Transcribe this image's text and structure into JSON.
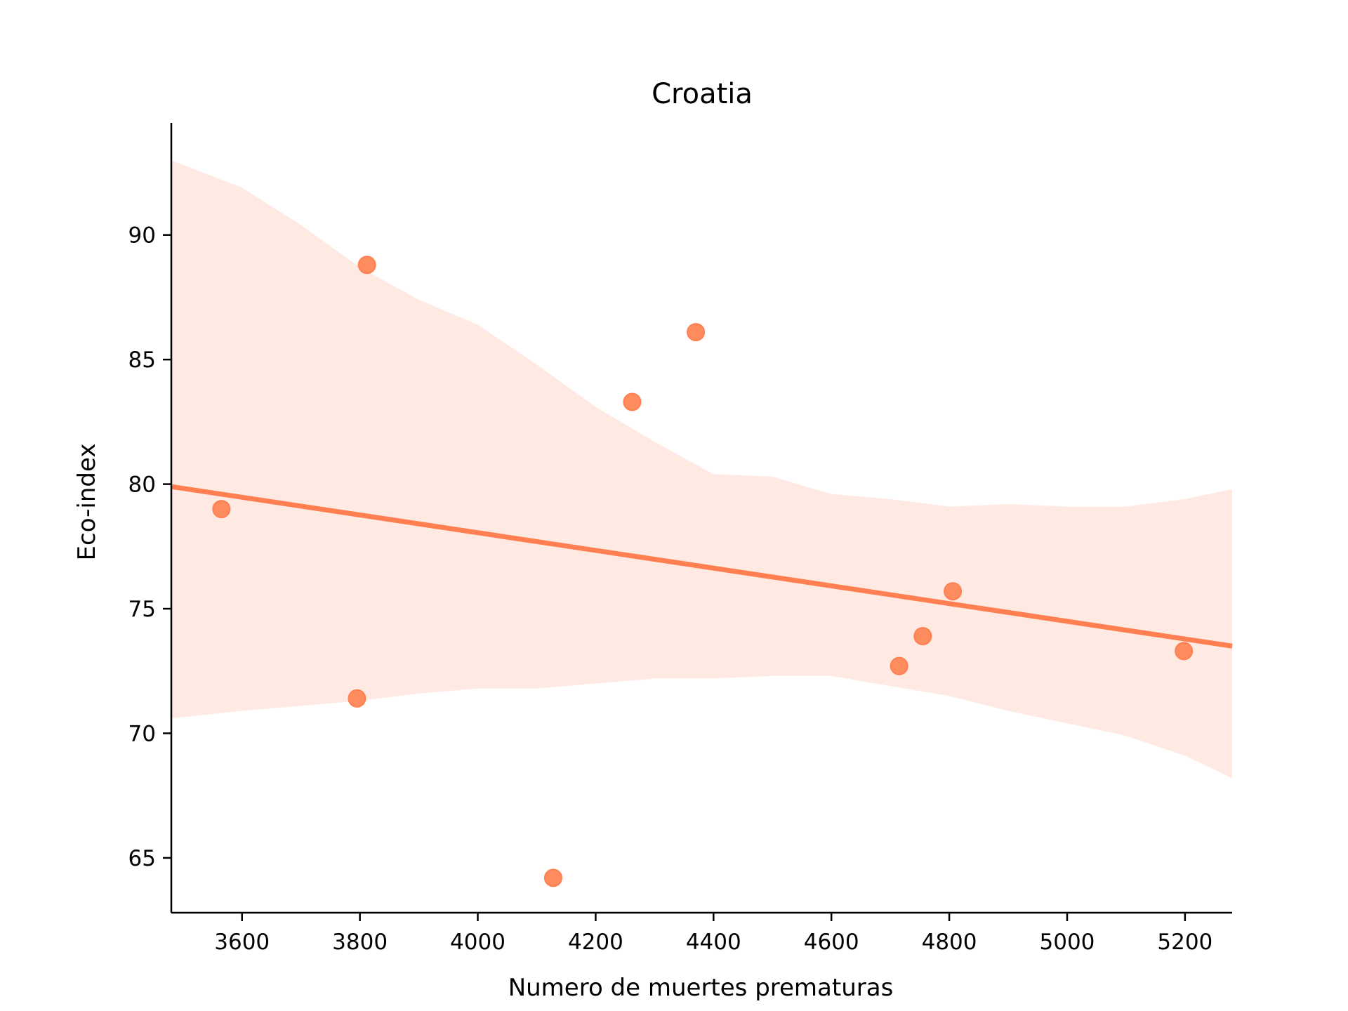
{
  "chart_data": {
    "type": "scatter",
    "title": "Croatia",
    "xlabel": "Numero de muertes prematuras",
    "ylabel": "Eco-index",
    "xlim": [
      3480,
      5280
    ],
    "ylim": [
      62.8,
      94.5
    ],
    "xticks": [
      3600,
      3800,
      4000,
      4200,
      4400,
      4600,
      4800,
      5000,
      5200
    ],
    "yticks": [
      65,
      70,
      75,
      80,
      85,
      90
    ],
    "grid": false,
    "legend": "none",
    "colors": {
      "points": "#ff8c5e",
      "line": "#ff7f50",
      "band": "#ffe9e3"
    },
    "points": [
      {
        "x": 3565,
        "y": 79.0
      },
      {
        "x": 3795,
        "y": 71.4
      },
      {
        "x": 3812,
        "y": 88.8
      },
      {
        "x": 4128,
        "y": 64.2
      },
      {
        "x": 4262,
        "y": 83.3
      },
      {
        "x": 4370,
        "y": 86.1
      },
      {
        "x": 4715,
        "y": 72.7
      },
      {
        "x": 4755,
        "y": 73.9
      },
      {
        "x": 4806,
        "y": 75.7
      },
      {
        "x": 5198,
        "y": 73.3
      }
    ],
    "regression_line": [
      {
        "x": 3480,
        "y": 79.9
      },
      {
        "x": 5280,
        "y": 73.5
      }
    ],
    "confidence_band": {
      "x": [
        3480,
        3600,
        3700,
        3800,
        3900,
        4000,
        4100,
        4200,
        4300,
        4400,
        4500,
        4600,
        4700,
        4800,
        4900,
        5000,
        5100,
        5200,
        5280
      ],
      "upper": [
        93.0,
        91.9,
        90.4,
        88.7,
        87.4,
        86.4,
        84.8,
        83.1,
        81.7,
        80.4,
        80.3,
        79.6,
        79.4,
        79.1,
        79.2,
        79.1,
        79.1,
        79.4,
        79.8
      ],
      "lower": [
        70.6,
        70.9,
        71.1,
        71.3,
        71.6,
        71.8,
        71.8,
        72.0,
        72.2,
        72.2,
        72.3,
        72.3,
        71.9,
        71.5,
        70.9,
        70.4,
        69.9,
        69.1,
        68.2
      ]
    }
  }
}
